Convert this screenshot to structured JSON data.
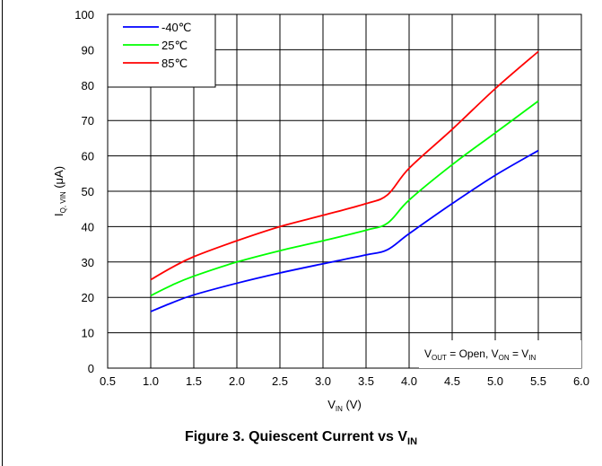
{
  "chart_data": {
    "type": "line",
    "x_range": [
      0.5,
      6.0
    ],
    "y_range": [
      0,
      100
    ],
    "x_ticks": [
      "0.5",
      "1.0",
      "1.5",
      "2.0",
      "2.5",
      "3.0",
      "3.5",
      "4.0",
      "4.5",
      "5.0",
      "5.5",
      "6.0"
    ],
    "y_ticks": [
      "0",
      "10",
      "20",
      "30",
      "40",
      "50",
      "60",
      "70",
      "80",
      "90",
      "100"
    ],
    "xlabel": {
      "main": "V",
      "sub": "IN",
      "suffix": " (V)"
    },
    "ylabel": {
      "main": "I",
      "sub": "Q, VIN",
      "suffix": " (μA)"
    },
    "grid": true,
    "legend_position": "top-left",
    "series": [
      {
        "name": "-40℃",
        "color": "#0000ff",
        "x": [
          1.0,
          1.25,
          1.5,
          2.0,
          2.5,
          3.0,
          3.5,
          3.75,
          4.0,
          4.5,
          5.0,
          5.5
        ],
        "y": [
          16,
          18.5,
          20.7,
          24,
          26.9,
          29.5,
          32,
          33.5,
          38,
          46.5,
          54.5,
          61.5
        ]
      },
      {
        "name": "25℃",
        "color": "#00ff00",
        "x": [
          1.0,
          1.25,
          1.5,
          2.0,
          2.5,
          3.0,
          3.5,
          3.75,
          4.0,
          4.5,
          5.0,
          5.5
        ],
        "y": [
          20.5,
          23.5,
          26,
          30,
          33.2,
          36,
          39,
          41,
          47.5,
          57.5,
          66.5,
          75.5
        ]
      },
      {
        "name": "85℃",
        "color": "#ff0000",
        "x": [
          1.0,
          1.25,
          1.5,
          2.0,
          2.5,
          3.0,
          3.5,
          3.75,
          4.0,
          4.5,
          5.0,
          5.5
        ],
        "y": [
          25,
          28.5,
          31.5,
          36,
          40,
          43.2,
          46.5,
          49,
          56.5,
          67.5,
          79,
          89.5
        ]
      }
    ],
    "annotation": {
      "parts": [
        {
          "text": "V"
        },
        {
          "text": "OUT",
          "sub": true
        },
        {
          "text": " = Open, V"
        },
        {
          "text": "ON",
          "sub": true
        },
        {
          "text": " = V"
        },
        {
          "text": "IN",
          "sub": true
        }
      ]
    },
    "title": {
      "main": "Figure 3. Quiescent Current vs V",
      "sub": "IN"
    }
  }
}
